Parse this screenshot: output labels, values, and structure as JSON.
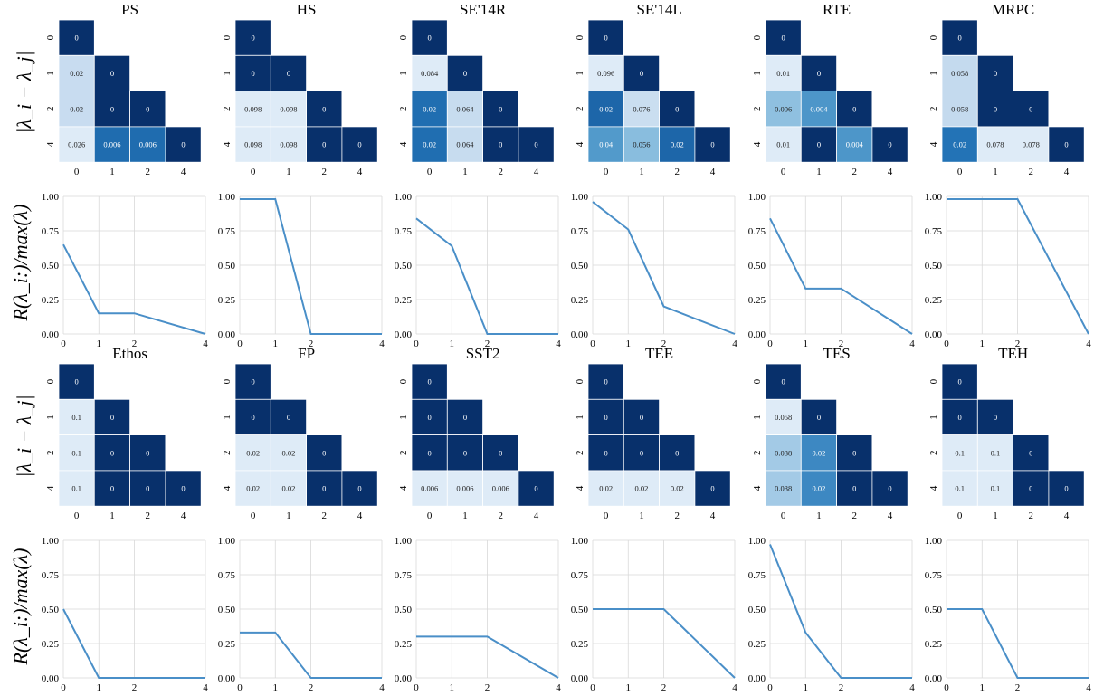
{
  "ylabels": {
    "heatmap": "|λ_i − λ_j|",
    "line": "R(λ_i:)/max(λ)"
  },
  "colors": {
    "line": "#4a8fc8",
    "grid": "#d9d9d9",
    "cell_border": "#ffffff",
    "heat_low": "#deebf7",
    "heat_high": "#08306b"
  },
  "chart_data": [
    {
      "type": "heatmap",
      "title": "PS",
      "x_labels": [
        "0",
        "1",
        "2",
        "4"
      ],
      "y_labels": [
        "0",
        "1",
        "2",
        "4"
      ],
      "cells": [
        [
          "0"
        ],
        [
          "0.02",
          "0"
        ],
        [
          "0.02",
          "0",
          "0"
        ],
        [
          "0.026",
          "0.006",
          "0.006",
          "0"
        ]
      ]
    },
    {
      "type": "heatmap",
      "title": "HS",
      "x_labels": [
        "0",
        "1",
        "2",
        "4"
      ],
      "y_labels": [
        "0",
        "1",
        "2",
        "4"
      ],
      "cells": [
        [
          "0"
        ],
        [
          "0",
          "0"
        ],
        [
          "0.098",
          "0.098",
          "0"
        ],
        [
          "0.098",
          "0.098",
          "0",
          "0"
        ]
      ]
    },
    {
      "type": "heatmap",
      "title": "SE'14R",
      "x_labels": [
        "0",
        "1",
        "2",
        "4"
      ],
      "y_labels": [
        "0",
        "1",
        "2",
        "4"
      ],
      "cells": [
        [
          "0"
        ],
        [
          "0.084",
          "0"
        ],
        [
          "0.02",
          "0.064",
          "0"
        ],
        [
          "0.02",
          "0.064",
          "0",
          "0"
        ]
      ]
    },
    {
      "type": "heatmap",
      "title": "SE'14L",
      "x_labels": [
        "0",
        "1",
        "2",
        "4"
      ],
      "y_labels": [
        "0",
        "1",
        "2",
        "4"
      ],
      "cells": [
        [
          "0"
        ],
        [
          "0.096",
          "0"
        ],
        [
          "0.02",
          "0.076",
          "0"
        ],
        [
          "0.04",
          "0.056",
          "0.02",
          "0"
        ]
      ]
    },
    {
      "type": "heatmap",
      "title": "RTE",
      "x_labels": [
        "0",
        "1",
        "2",
        "4"
      ],
      "y_labels": [
        "0",
        "1",
        "2",
        "4"
      ],
      "cells": [
        [
          "0"
        ],
        [
          "0.01",
          "0"
        ],
        [
          "0.006",
          "0.004",
          "0"
        ],
        [
          "0.01",
          "0",
          "0.004",
          "0"
        ]
      ]
    },
    {
      "type": "heatmap",
      "title": "MRPC",
      "x_labels": [
        "0",
        "1",
        "2",
        "4"
      ],
      "y_labels": [
        "0",
        "1",
        "2",
        "4"
      ],
      "cells": [
        [
          "0"
        ],
        [
          "0.058",
          "0"
        ],
        [
          "0.058",
          "0",
          "0"
        ],
        [
          "0.02",
          "0.078",
          "0.078",
          "0"
        ]
      ]
    },
    {
      "type": "line",
      "title": "",
      "x": [
        0,
        1,
        2,
        4
      ],
      "y": [
        0.65,
        0.15,
        0.15,
        0.0
      ],
      "ylim": [
        0,
        1
      ],
      "yticks": [
        "0.00",
        "0.25",
        "0.50",
        "0.75",
        "1.00"
      ],
      "xticks": [
        "0",
        "1",
        "2",
        "4"
      ]
    },
    {
      "type": "line",
      "title": "",
      "x": [
        0,
        1,
        2,
        4
      ],
      "y": [
        0.98,
        0.98,
        0.0,
        0.0
      ],
      "ylim": [
        0,
        1
      ],
      "yticks": [
        "0.00",
        "0.25",
        "0.50",
        "0.75",
        "1.00"
      ],
      "xticks": [
        "0",
        "1",
        "2",
        "4"
      ]
    },
    {
      "type": "line",
      "title": "",
      "x": [
        0,
        1,
        2,
        4
      ],
      "y": [
        0.84,
        0.64,
        0.0,
        0.0
      ],
      "ylim": [
        0,
        1
      ],
      "yticks": [
        "0.00",
        "0.25",
        "0.50",
        "0.75",
        "1.00"
      ],
      "xticks": [
        "0",
        "1",
        "2",
        "4"
      ]
    },
    {
      "type": "line",
      "title": "",
      "x": [
        0,
        1,
        2,
        4
      ],
      "y": [
        0.96,
        0.76,
        0.2,
        0.0
      ],
      "ylim": [
        0,
        1
      ],
      "yticks": [
        "0.00",
        "0.25",
        "0.50",
        "0.75",
        "1.00"
      ],
      "xticks": [
        "0",
        "1",
        "2",
        "4"
      ]
    },
    {
      "type": "line",
      "title": "",
      "x": [
        0,
        1,
        2,
        4
      ],
      "y": [
        0.84,
        0.33,
        0.33,
        0.0
      ],
      "ylim": [
        0,
        1
      ],
      "yticks": [
        "0.00",
        "0.25",
        "0.50",
        "0.75",
        "1.00"
      ],
      "xticks": [
        "0",
        "1",
        "2",
        "4"
      ]
    },
    {
      "type": "line",
      "title": "",
      "x": [
        0,
        1,
        2,
        4
      ],
      "y": [
        0.98,
        0.98,
        0.98,
        0.0
      ],
      "ylim": [
        0,
        1
      ],
      "yticks": [
        "0.00",
        "0.25",
        "0.50",
        "0.75",
        "1.00"
      ],
      "xticks": [
        "0",
        "1",
        "2",
        "4"
      ]
    },
    {
      "type": "heatmap",
      "title": "Ethos",
      "x_labels": [
        "0",
        "1",
        "2",
        "4"
      ],
      "y_labels": [
        "0",
        "1",
        "2",
        "4"
      ],
      "cells": [
        [
          "0"
        ],
        [
          "0.1",
          "0"
        ],
        [
          "0.1",
          "0",
          "0"
        ],
        [
          "0.1",
          "0",
          "0",
          "0"
        ]
      ]
    },
    {
      "type": "heatmap",
      "title": "FP",
      "x_labels": [
        "0",
        "1",
        "2",
        "4"
      ],
      "y_labels": [
        "0",
        "1",
        "2",
        "4"
      ],
      "cells": [
        [
          "0"
        ],
        [
          "0",
          "0"
        ],
        [
          "0.02",
          "0.02",
          "0"
        ],
        [
          "0.02",
          "0.02",
          "0",
          "0"
        ]
      ]
    },
    {
      "type": "heatmap",
      "title": "SST2",
      "x_labels": [
        "0",
        "1",
        "2",
        "4"
      ],
      "y_labels": [
        "0",
        "1",
        "2",
        "4"
      ],
      "cells": [
        [
          "0"
        ],
        [
          "0",
          "0"
        ],
        [
          "0",
          "0",
          "0"
        ],
        [
          "0.006",
          "0.006",
          "0.006",
          "0"
        ]
      ]
    },
    {
      "type": "heatmap",
      "title": "TEE",
      "x_labels": [
        "0",
        "1",
        "2",
        "4"
      ],
      "y_labels": [
        "0",
        "1",
        "2",
        "4"
      ],
      "cells": [
        [
          "0"
        ],
        [
          "0",
          "0"
        ],
        [
          "0",
          "0",
          "0"
        ],
        [
          "0.02",
          "0.02",
          "0.02",
          "0"
        ]
      ]
    },
    {
      "type": "heatmap",
      "title": "TES",
      "x_labels": [
        "0",
        "1",
        "2",
        "4"
      ],
      "y_labels": [
        "0",
        "1",
        "2",
        "4"
      ],
      "cells": [
        [
          "0"
        ],
        [
          "0.058",
          "0"
        ],
        [
          "0.038",
          "0.02",
          "0"
        ],
        [
          "0.038",
          "0.02",
          "0",
          "0"
        ]
      ]
    },
    {
      "type": "heatmap",
      "title": "TEH",
      "x_labels": [
        "0",
        "1",
        "2",
        "4"
      ],
      "y_labels": [
        "0",
        "1",
        "2",
        "4"
      ],
      "cells": [
        [
          "0"
        ],
        [
          "0",
          "0"
        ],
        [
          "0.1",
          "0.1",
          "0"
        ],
        [
          "0.1",
          "0.1",
          "0",
          "0"
        ]
      ]
    },
    {
      "type": "line",
      "title": "",
      "x": [
        0,
        1,
        2,
        4
      ],
      "y": [
        0.5,
        0.0,
        0.0,
        0.0
      ],
      "ylim": [
        0,
        1
      ],
      "yticks": [
        "0.00",
        "0.25",
        "0.50",
        "0.75",
        "1.00"
      ],
      "xticks": [
        "0",
        "1",
        "2",
        "4"
      ]
    },
    {
      "type": "line",
      "title": "",
      "x": [
        0,
        1,
        2,
        4
      ],
      "y": [
        0.33,
        0.33,
        0.0,
        0.0
      ],
      "ylim": [
        0,
        1
      ],
      "yticks": [
        "0.00",
        "0.25",
        "0.50",
        "0.75",
        "1.00"
      ],
      "xticks": [
        "0",
        "1",
        "2",
        "4"
      ]
    },
    {
      "type": "line",
      "title": "",
      "x": [
        0,
        1,
        2,
        4
      ],
      "y": [
        0.3,
        0.3,
        0.3,
        0.0
      ],
      "ylim": [
        0,
        1
      ],
      "yticks": [
        "0.00",
        "0.25",
        "0.50",
        "0.75",
        "1.00"
      ],
      "xticks": [
        "0",
        "1",
        "2",
        "4"
      ]
    },
    {
      "type": "line",
      "title": "",
      "x": [
        0,
        1,
        2,
        4
      ],
      "y": [
        0.5,
        0.5,
        0.5,
        0.0
      ],
      "ylim": [
        0,
        1
      ],
      "yticks": [
        "0.00",
        "0.25",
        "0.50",
        "0.75",
        "1.00"
      ],
      "xticks": [
        "0",
        "1",
        "2",
        "4"
      ]
    },
    {
      "type": "line",
      "title": "",
      "x": [
        0,
        1,
        2,
        4
      ],
      "y": [
        0.97,
        0.33,
        0.0,
        0.0
      ],
      "ylim": [
        0,
        1
      ],
      "yticks": [
        "0.00",
        "0.25",
        "0.50",
        "0.75",
        "1.00"
      ],
      "xticks": [
        "0",
        "1",
        "2",
        "4"
      ]
    },
    {
      "type": "line",
      "title": "",
      "x": [
        0,
        1,
        2,
        4
      ],
      "y": [
        0.5,
        0.5,
        0.0,
        0.0
      ],
      "ylim": [
        0,
        1
      ],
      "yticks": [
        "0.00",
        "0.25",
        "0.50",
        "0.75",
        "1.00"
      ],
      "xticks": [
        "0",
        "1",
        "2",
        "4"
      ]
    }
  ]
}
